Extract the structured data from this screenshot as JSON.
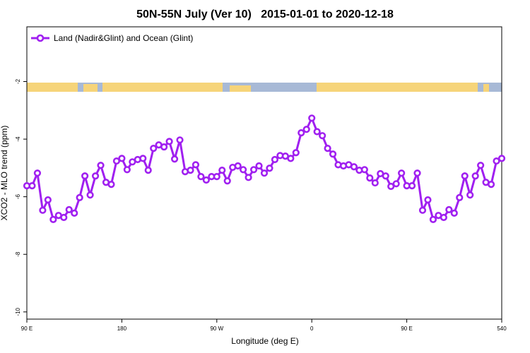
{
  "chart_data": {
    "type": "line",
    "title": "50N-55N July (Ver 10)   2015-01-01 to 2020-12-18",
    "xlabel": "Longitude (deg E)",
    "ylabel": "XCO2 - MLO trend (ppm)",
    "x": [
      90,
      95,
      100,
      105,
      110,
      115,
      120,
      125,
      130,
      135,
      140,
      145,
      150,
      155,
      160,
      165,
      170,
      175,
      180,
      185,
      190,
      195,
      200,
      205,
      210,
      215,
      220,
      225,
      230,
      235,
      240,
      245,
      250,
      255,
      260,
      265,
      270,
      275,
      280,
      285,
      290,
      295,
      300,
      305,
      310,
      315,
      320,
      325,
      330,
      335,
      340,
      345,
      350,
      355,
      360,
      365,
      370,
      375,
      380,
      385,
      390,
      395,
      400,
      405,
      410,
      415,
      420,
      425,
      430,
      435,
      440,
      445,
      450,
      455,
      460,
      465,
      470,
      475,
      480,
      485,
      490,
      495,
      500,
      505,
      510,
      515,
      520,
      525,
      530,
      535,
      540
    ],
    "series": [
      {
        "name": "Land (Nadir&Glint) and Ocean (Glint)",
        "color": "#a020f0",
        "values": [
          -5.62,
          -5.62,
          -5.18,
          -6.47,
          -6.11,
          -6.79,
          -6.65,
          -6.72,
          -6.45,
          -6.57,
          -6.03,
          -5.28,
          -5.94,
          -5.28,
          -4.91,
          -5.5,
          -5.57,
          -4.76,
          -4.67,
          -5.06,
          -4.79,
          -4.71,
          -4.67,
          -5.08,
          -4.32,
          -4.2,
          -4.27,
          -4.08,
          -4.69,
          -4.03,
          -5.13,
          -5.08,
          -4.89,
          -5.3,
          -5.42,
          -5.3,
          -5.3,
          -5.08,
          -5.45,
          -4.98,
          -4.93,
          -5.06,
          -5.33,
          -5.06,
          -4.93,
          -5.18,
          -5.01,
          -4.71,
          -4.57,
          -4.59,
          -4.67,
          -4.47,
          -3.78,
          -3.66,
          -3.27,
          -3.74,
          -3.88,
          -4.32,
          -4.52,
          -4.89,
          -4.93,
          -4.89,
          -4.96,
          -5.08,
          -5.06,
          -5.35,
          -5.52,
          -5.2,
          -5.28,
          -5.64,
          -5.55,
          -5.18,
          -5.62,
          -5.62,
          -5.18,
          -6.47,
          -6.11,
          -6.79,
          -6.65,
          -6.72,
          -6.45,
          -6.57,
          -6.03,
          -5.28,
          -5.94,
          -5.28,
          -4.91,
          -5.5,
          -5.57,
          -4.76,
          -4.67
        ]
      }
    ],
    "xlim": [
      90,
      540
    ],
    "xticks": [
      {
        "value": 90,
        "label": "90 E"
      },
      180,
      {
        "value": 270,
        "label": "90 W"
      },
      {
        "value": 360,
        "label": "0"
      },
      {
        "value": 450,
        "label": "90 E"
      },
      540
    ],
    "ylim": [
      -10.25,
      -0.1
    ],
    "yticks": [
      -2,
      -4,
      -6,
      -8,
      -10
    ],
    "legend": "top-left"
  }
}
